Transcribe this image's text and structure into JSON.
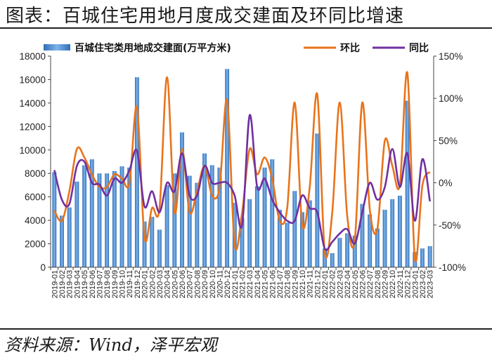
{
  "page": {
    "title": "图表：百城住宅用地月度成交建面及环同比增速",
    "source": "资料来源：Wind，泽平宏观"
  },
  "chart_data": {
    "type": "bar",
    "categories": [
      "2019-01",
      "2019-02",
      "2019-03",
      "2019-04",
      "2019-05",
      "2019-06",
      "2019-07",
      "2019-08",
      "2019-09",
      "2019-10",
      "2019-11",
      "2019-12",
      "2020-01",
      "2020-02",
      "2020-03",
      "2020-04",
      "2020-05",
      "2020-06",
      "2020-07",
      "2020-08",
      "2020-09",
      "2020-10",
      "2020-11",
      "2020-12",
      "2021-01",
      "2021-02",
      "2021-03",
      "2021-04",
      "2021-05",
      "2021-06",
      "2021-07",
      "2021-08",
      "2021-09",
      "2021-10",
      "2021-11",
      "2021-12",
      "2022-01",
      "2022-02",
      "2022-03",
      "2022-04",
      "2022-05",
      "2022-06",
      "2022-07",
      "2022-08",
      "2022-09",
      "2022-10",
      "2022-11",
      "2022-12",
      "2023-01",
      "2023-02",
      "2023-03"
    ],
    "series": [
      {
        "name": "百城住宅类用地成交建面(万平方米)",
        "type": "bar",
        "axis": "left",
        "color": "#4a90d9",
        "values": [
          8100,
          4400,
          5100,
          7300,
          8700,
          9200,
          8000,
          8000,
          8200,
          8600,
          8500,
          16200,
          3900,
          4300,
          3200,
          7000,
          8000,
          11500,
          7800,
          7200,
          9700,
          8700,
          8500,
          16900,
          5500,
          4200,
          5800,
          6900,
          8500,
          9200,
          4900,
          3800,
          6500,
          4700,
          5700,
          11400,
          1600,
          1200,
          2500,
          2900,
          2700,
          5400,
          4500,
          3300,
          4900,
          5800,
          6100,
          14200,
          1300,
          1600,
          1800
        ]
      },
      {
        "name": "环比",
        "type": "line",
        "axis": "right",
        "color": "#e8741c",
        "values": [
          -33,
          -45,
          -10,
          40,
          30,
          10,
          -5,
          -5,
          10,
          5,
          0,
          90,
          -65,
          -30,
          -30,
          125,
          -35,
          40,
          -35,
          -10,
          20,
          -15,
          -5,
          98,
          -73,
          -35,
          40,
          10,
          30,
          5,
          -45,
          -30,
          95,
          -50,
          -5,
          105,
          -82,
          -35,
          95,
          -40,
          -68,
          95,
          -32,
          -55,
          50,
          20,
          -2,
          130,
          -90,
          -3,
          13
        ]
      },
      {
        "name": "同比",
        "type": "line",
        "axis": "right",
        "color": "#7030a0",
        "values": [
          15,
          -20,
          -25,
          20,
          25,
          0,
          -2,
          -15,
          5,
          0,
          15,
          38,
          -28,
          -10,
          -35,
          0,
          -10,
          35,
          -15,
          -15,
          20,
          0,
          0,
          0,
          -15,
          -50,
          80,
          -5,
          5,
          -20,
          -35,
          -45,
          -45,
          -15,
          -30,
          -35,
          -78,
          -70,
          -60,
          -55,
          -72,
          -35,
          0,
          -20,
          -5,
          40,
          -5,
          35,
          -45,
          28,
          -22
        ]
      }
    ],
    "left_axis": {
      "ylim": [
        0,
        18000
      ],
      "ticks": [
        "0",
        "2000",
        "4000",
        "6000",
        "8000",
        "10000",
        "12000",
        "14000",
        "16000",
        "18000"
      ]
    },
    "right_axis": {
      "ylim": [
        -100,
        150
      ],
      "ticks": [
        "-100%",
        "-50%",
        "0%",
        "50%",
        "100%",
        "150%"
      ]
    },
    "legend_placement": "top"
  }
}
